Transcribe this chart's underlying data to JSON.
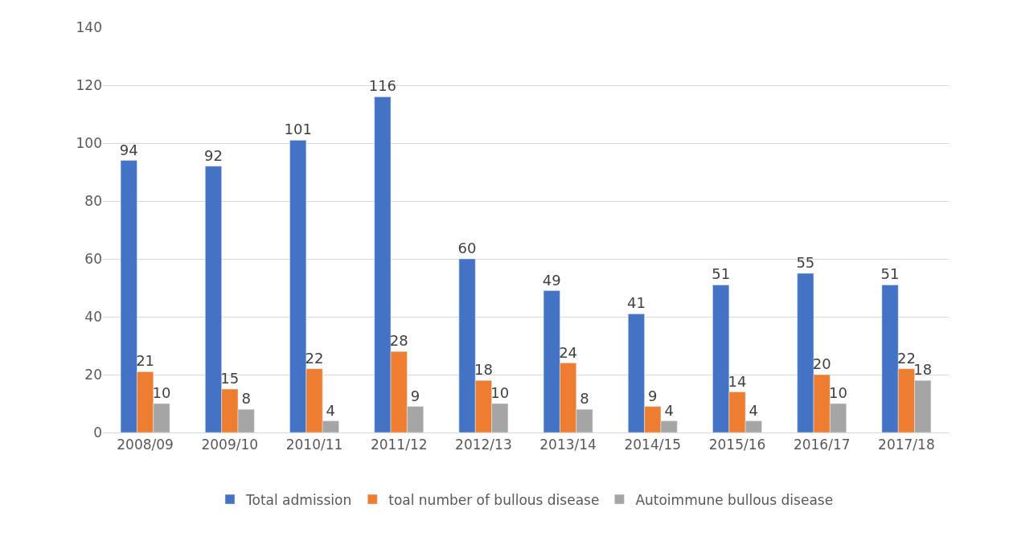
{
  "chart_data": {
    "type": "bar",
    "categories": [
      "2008/09",
      "2009/10",
      "2010/11",
      "2011/12",
      "2012/13",
      "2013/14",
      "2014/15",
      "2015/16",
      "2016/17",
      "2017/18"
    ],
    "series": [
      {
        "name": "Total admission",
        "color": "#4472c4",
        "values": [
          94,
          92,
          101,
          116,
          60,
          49,
          41,
          51,
          55,
          51
        ]
      },
      {
        "name": "toal number of bullous disease",
        "color": "#ed7d31",
        "values": [
          21,
          15,
          22,
          28,
          18,
          24,
          9,
          14,
          20,
          22
        ]
      },
      {
        "name": "Autoimmune bullous disease",
        "color": "#a5a5a5",
        "values": [
          10,
          8,
          4,
          9,
          10,
          8,
          4,
          4,
          10,
          18
        ]
      }
    ],
    "ylim": [
      0,
      140
    ],
    "yticks": [
      0,
      20,
      40,
      60,
      80,
      100,
      120,
      140
    ],
    "grid": "y",
    "legend": "bottom",
    "data_labels": true
  }
}
